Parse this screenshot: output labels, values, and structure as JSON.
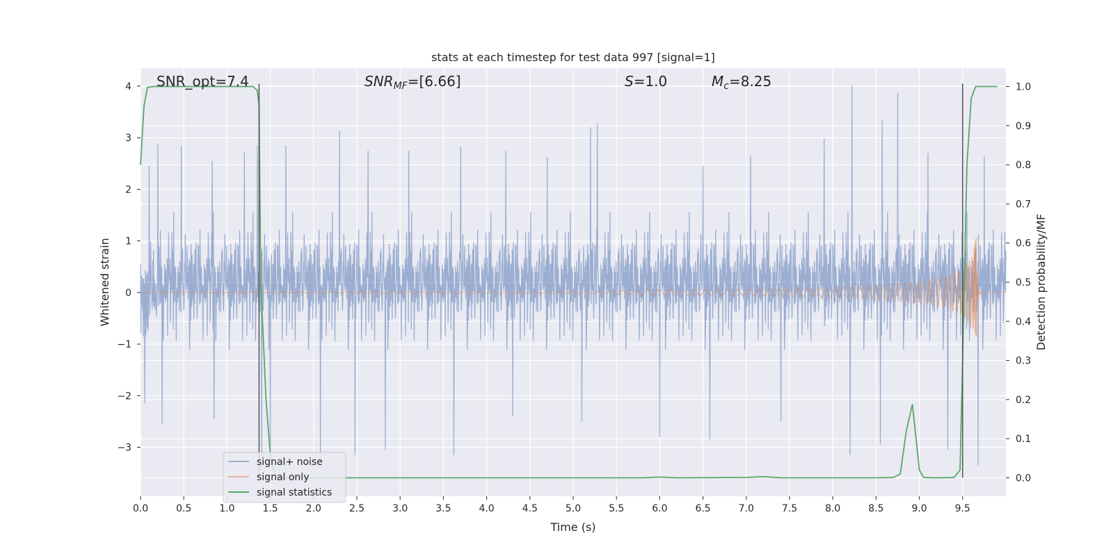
{
  "chart_data": {
    "type": "line",
    "title": "stats at each timestep for test data 997 [signal=1]",
    "xlabel": "Time (s)",
    "ylabel": "Whitened strain",
    "ylabel_right": "Detection probability/MF",
    "xlim": [
      0,
      10
    ],
    "ylim": [
      -3.95,
      4.35
    ],
    "ylim_right": [
      -0.047,
      1.047
    ],
    "x_ticks": [
      0.0,
      0.5,
      1.0,
      1.5,
      2.0,
      2.5,
      3.0,
      3.5,
      4.0,
      4.5,
      5.0,
      5.5,
      6.0,
      6.5,
      7.0,
      7.5,
      8.0,
      8.5,
      9.0,
      9.5
    ],
    "x_tick_labels": [
      "0.0",
      "0.5",
      "1.0",
      "1.5",
      "2.0",
      "2.5",
      "3.0",
      "3.5",
      "4.0",
      "4.5",
      "5.0",
      "5.5",
      "6.0",
      "6.5",
      "7.0",
      "7.5",
      "8.0",
      "8.5",
      "9.0",
      "9.5"
    ],
    "y_ticks": [
      4,
      3,
      2,
      1,
      0,
      -1,
      -2,
      -3
    ],
    "y_tick_labels": [
      "4",
      "3",
      "2",
      "1",
      "0",
      "−1",
      "−2",
      "−3"
    ],
    "y_right_ticks": [
      1.0,
      0.9,
      0.8,
      0.7,
      0.6,
      0.5,
      0.4,
      0.3,
      0.2,
      0.1,
      0.0
    ],
    "y_right_tick_labels": [
      "1.0",
      "0.9",
      "0.8",
      "0.7",
      "0.6",
      "0.5",
      "0.4",
      "0.3",
      "0.2",
      "0.1",
      "0.0"
    ],
    "grid": true,
    "legend_position": "bottom-left",
    "annotations": {
      "snr_opt": "SNR_opt=7.4",
      "snr_mf_sym": "SNR",
      "snr_mf_sub": "MF",
      "snr_mf_val": "=[6.66]",
      "s_sym": "S",
      "s_val": "=1.0",
      "mc_sym": "M",
      "mc_sub": "c",
      "mc_val": "=8.25"
    },
    "vertical_markers": [
      1.37,
      9.5
    ],
    "series": [
      {
        "name": "signal+ noise",
        "color": "#4c72b0",
        "style": "noise band",
        "typical_range": [
          -2.0,
          2.2
        ],
        "peaks": [
          [
            0.1,
            2.45
          ],
          [
            0.2,
            2.88
          ],
          [
            0.47,
            2.85
          ],
          [
            0.83,
            2.55
          ],
          [
            1.2,
            2.72
          ],
          [
            1.35,
            2.85
          ],
          [
            1.68,
            2.85
          ],
          [
            2.3,
            3.13
          ],
          [
            2.63,
            2.75
          ],
          [
            3.1,
            2.75
          ],
          [
            3.7,
            2.82
          ],
          [
            4.22,
            2.75
          ],
          [
            4.7,
            2.62
          ],
          [
            5.2,
            3.2
          ],
          [
            5.28,
            3.28
          ],
          [
            6.0,
            3.0
          ],
          [
            6.5,
            2.45
          ],
          [
            7.05,
            2.65
          ],
          [
            7.9,
            2.98
          ],
          [
            8.22,
            4.02
          ],
          [
            8.57,
            3.35
          ],
          [
            8.75,
            3.87
          ],
          [
            9.1,
            2.7
          ],
          [
            9.75,
            2.63
          ]
        ],
        "troughs": [
          [
            0.05,
            -2.15
          ],
          [
            0.25,
            -2.55
          ],
          [
            0.85,
            -2.45
          ],
          [
            1.4,
            -3.4
          ],
          [
            1.5,
            -3.3
          ],
          [
            2.08,
            -3.35
          ],
          [
            2.48,
            -3.15
          ],
          [
            2.83,
            -3.05
          ],
          [
            3.62,
            -3.15
          ],
          [
            4.3,
            -2.4
          ],
          [
            5.1,
            -2.5
          ],
          [
            6.0,
            -2.8
          ],
          [
            6.58,
            -2.85
          ],
          [
            7.4,
            -2.5
          ],
          [
            8.2,
            -3.15
          ],
          [
            8.55,
            -2.95
          ],
          [
            9.33,
            -3.05
          ],
          [
            9.68,
            -3.35
          ]
        ]
      },
      {
        "name": "signal only",
        "color": "#dd8452",
        "style": "chirp",
        "chirp_start": 5.5,
        "merger_time": 9.66,
        "envelope": [
          [
            5.5,
            0.03
          ],
          [
            6.0,
            0.05
          ],
          [
            7.0,
            0.06
          ],
          [
            7.5,
            0.08
          ],
          [
            8.0,
            0.1
          ],
          [
            8.5,
            0.14
          ],
          [
            9.0,
            0.21
          ],
          [
            9.3,
            0.3
          ],
          [
            9.5,
            0.45
          ],
          [
            9.62,
            0.75
          ],
          [
            9.66,
            1.1
          ]
        ],
        "ringdown_min": -0.85
      },
      {
        "name": "signal statistics",
        "color": "#55a868",
        "axis": "right",
        "x": [
          0.0,
          0.04,
          0.08,
          0.15,
          0.3,
          1.3,
          1.35,
          1.37,
          1.39,
          1.45,
          1.5,
          1.55,
          1.62,
          2.0,
          3.0,
          5.8,
          6.0,
          6.2,
          7.0,
          7.2,
          7.4,
          8.5,
          8.7,
          8.78,
          8.85,
          8.92,
          9.0,
          9.05,
          9.2,
          9.4,
          9.47,
          9.5,
          9.55,
          9.6,
          9.65,
          9.7,
          9.9
        ],
        "y": [
          0.8,
          0.95,
          0.998,
          1.0,
          1.0,
          1.0,
          0.99,
          0.95,
          0.5,
          0.2,
          0.06,
          0.01,
          0.0,
          0.0,
          0.0,
          0.0,
          0.002,
          0.0,
          0.001,
          0.003,
          0.0,
          0.0,
          0.001,
          0.01,
          0.12,
          0.188,
          0.02,
          0.001,
          0.0,
          0.001,
          0.02,
          0.3,
          0.8,
          0.97,
          1.0,
          1.0,
          1.0
        ]
      }
    ]
  }
}
